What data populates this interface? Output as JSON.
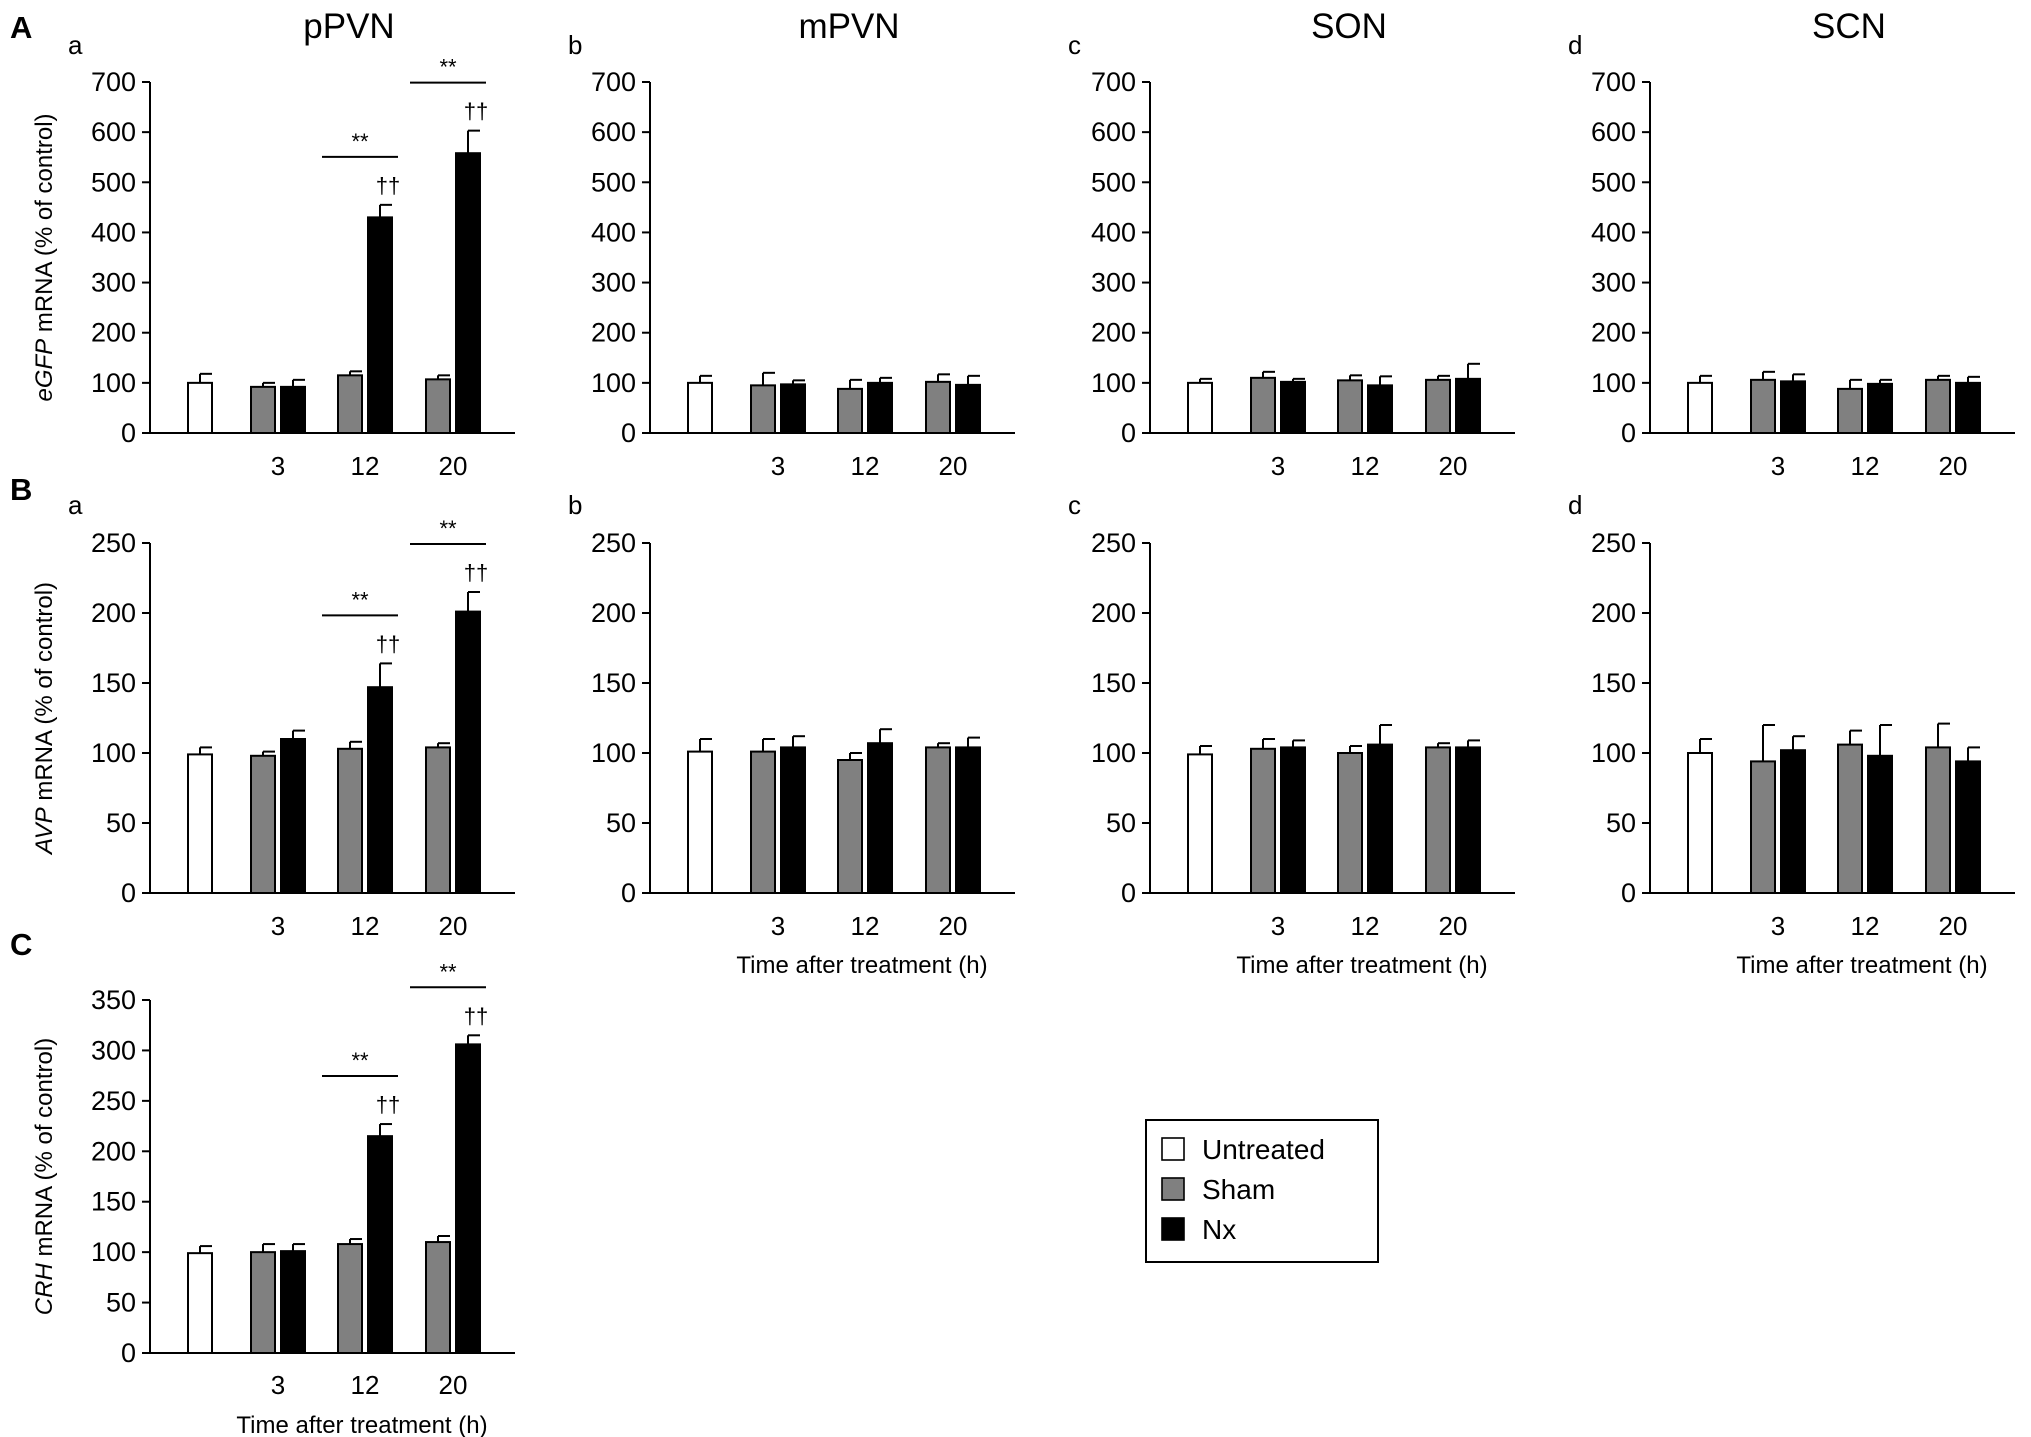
{
  "legend": {
    "entries": [
      {
        "name": "Untreated",
        "color": "#ffffff"
      },
      {
        "name": "Sham",
        "color": "#808080"
      },
      {
        "name": "Nx",
        "color": "#000000"
      }
    ]
  },
  "chart_data": [
    {
      "id": "A-a",
      "type": "bar",
      "panel": "A",
      "sub": "a",
      "title": "pPVN",
      "ylabel_italic": "eGFP",
      "ylabel_rest": " mRNA (% of control)",
      "xlabel": "",
      "ylim": [
        0,
        700
      ],
      "yticks": [
        0,
        100,
        200,
        300,
        400,
        500,
        600,
        700
      ],
      "categories": [
        "",
        "3",
        "12",
        "20"
      ],
      "series": [
        {
          "name": "Untreated",
          "values": [
            100,
            null,
            null,
            null
          ],
          "errors": [
            18,
            null,
            null,
            null
          ]
        },
        {
          "name": "Sham",
          "values": [
            null,
            92,
            115,
            107
          ],
          "errors": [
            null,
            8,
            8,
            8
          ]
        },
        {
          "name": "Nx",
          "values": [
            null,
            92,
            430,
            558
          ],
          "errors": [
            null,
            14,
            25,
            45
          ]
        }
      ],
      "annotations": [
        {
          "category": "12",
          "text": "**",
          "type": "bracket"
        },
        {
          "category": "12",
          "text": "††",
          "type": "dagger"
        },
        {
          "category": "20",
          "text": "**",
          "type": "bracket"
        },
        {
          "category": "20",
          "text": "††",
          "type": "dagger"
        }
      ]
    },
    {
      "id": "A-b",
      "type": "bar",
      "panel": "",
      "sub": "b",
      "title": "mPVN",
      "ylabel_italic": "",
      "ylabel_rest": "",
      "xlabel": "",
      "ylim": [
        0,
        700
      ],
      "yticks": [
        0,
        100,
        200,
        300,
        400,
        500,
        600,
        700
      ],
      "categories": [
        "",
        "3",
        "12",
        "20"
      ],
      "series": [
        {
          "name": "Untreated",
          "values": [
            100,
            null,
            null,
            null
          ],
          "errors": [
            14,
            null,
            null,
            null
          ]
        },
        {
          "name": "Sham",
          "values": [
            null,
            95,
            88,
            102
          ],
          "errors": [
            null,
            25,
            18,
            15
          ]
        },
        {
          "name": "Nx",
          "values": [
            null,
            97,
            100,
            96
          ],
          "errors": [
            null,
            8,
            10,
            18
          ]
        }
      ],
      "annotations": []
    },
    {
      "id": "A-c",
      "type": "bar",
      "panel": "",
      "sub": "c",
      "title": "SON",
      "ylabel_italic": "",
      "ylabel_rest": "",
      "xlabel": "",
      "ylim": [
        0,
        700
      ],
      "yticks": [
        0,
        100,
        200,
        300,
        400,
        500,
        600,
        700
      ],
      "categories": [
        "",
        "3",
        "12",
        "20"
      ],
      "series": [
        {
          "name": "Untreated",
          "values": [
            100,
            null,
            null,
            null
          ],
          "errors": [
            8,
            null,
            null,
            null
          ]
        },
        {
          "name": "Sham",
          "values": [
            null,
            110,
            105,
            106
          ],
          "errors": [
            null,
            12,
            10,
            8
          ]
        },
        {
          "name": "Nx",
          "values": [
            null,
            102,
            95,
            108
          ],
          "errors": [
            null,
            6,
            18,
            30
          ]
        }
      ],
      "annotations": []
    },
    {
      "id": "A-d",
      "type": "bar",
      "panel": "",
      "sub": "d",
      "title": "SCN",
      "ylabel_italic": "",
      "ylabel_rest": "",
      "xlabel": "",
      "ylim": [
        0,
        700
      ],
      "yticks": [
        0,
        100,
        200,
        300,
        400,
        500,
        600,
        700
      ],
      "categories": [
        "",
        "3",
        "12",
        "20"
      ],
      "series": [
        {
          "name": "Untreated",
          "values": [
            100,
            null,
            null,
            null
          ],
          "errors": [
            14,
            null,
            null,
            null
          ]
        },
        {
          "name": "Sham",
          "values": [
            null,
            106,
            88,
            106
          ],
          "errors": [
            null,
            16,
            18,
            8
          ]
        },
        {
          "name": "Nx",
          "values": [
            null,
            103,
            98,
            100
          ],
          "errors": [
            null,
            14,
            8,
            12
          ]
        }
      ],
      "annotations": []
    },
    {
      "id": "B-a",
      "type": "bar",
      "panel": "B",
      "sub": "a",
      "title": "",
      "ylabel_italic": "AVP",
      "ylabel_rest": " mRNA (% of control)",
      "xlabel": "",
      "ylim": [
        0,
        250
      ],
      "yticks": [
        0,
        50,
        100,
        150,
        200,
        250
      ],
      "categories": [
        "",
        "3",
        "12",
        "20"
      ],
      "series": [
        {
          "name": "Untreated",
          "values": [
            99,
            null,
            null,
            null
          ],
          "errors": [
            5,
            null,
            null,
            null
          ]
        },
        {
          "name": "Sham",
          "values": [
            null,
            98,
            103,
            104
          ],
          "errors": [
            null,
            3,
            5,
            3
          ]
        },
        {
          "name": "Nx",
          "values": [
            null,
            110,
            147,
            201
          ],
          "errors": [
            null,
            6,
            17,
            14
          ]
        }
      ],
      "annotations": [
        {
          "category": "12",
          "text": "**",
          "type": "bracket"
        },
        {
          "category": "12",
          "text": "††",
          "type": "dagger"
        },
        {
          "category": "20",
          "text": "**",
          "type": "bracket"
        },
        {
          "category": "20",
          "text": "††",
          "type": "dagger"
        }
      ]
    },
    {
      "id": "B-b",
      "type": "bar",
      "panel": "",
      "sub": "b",
      "title": "",
      "ylabel_italic": "",
      "ylabel_rest": "",
      "xlabel": "Time after treatment (h)",
      "ylim": [
        0,
        250
      ],
      "yticks": [
        0,
        50,
        100,
        150,
        200,
        250
      ],
      "categories": [
        "",
        "3",
        "12",
        "20"
      ],
      "series": [
        {
          "name": "Untreated",
          "values": [
            101,
            null,
            null,
            null
          ],
          "errors": [
            9,
            null,
            null,
            null
          ]
        },
        {
          "name": "Sham",
          "values": [
            null,
            101,
            95,
            104
          ],
          "errors": [
            null,
            9,
            5,
            3
          ]
        },
        {
          "name": "Nx",
          "values": [
            null,
            104,
            107,
            104
          ],
          "errors": [
            null,
            8,
            10,
            7
          ]
        }
      ],
      "annotations": []
    },
    {
      "id": "B-c",
      "type": "bar",
      "panel": "",
      "sub": "c",
      "title": "",
      "ylabel_italic": "",
      "ylabel_rest": "",
      "xlabel": "Time after treatment (h)",
      "ylim": [
        0,
        250
      ],
      "yticks": [
        0,
        50,
        100,
        150,
        200,
        250
      ],
      "categories": [
        "",
        "3",
        "12",
        "20"
      ],
      "series": [
        {
          "name": "Untreated",
          "values": [
            99,
            null,
            null,
            null
          ],
          "errors": [
            6,
            null,
            null,
            null
          ]
        },
        {
          "name": "Sham",
          "values": [
            null,
            103,
            100,
            104
          ],
          "errors": [
            null,
            7,
            5,
            3
          ]
        },
        {
          "name": "Nx",
          "values": [
            null,
            104,
            106,
            104
          ],
          "errors": [
            null,
            5,
            14,
            5
          ]
        }
      ],
      "annotations": []
    },
    {
      "id": "B-d",
      "type": "bar",
      "panel": "",
      "sub": "d",
      "title": "",
      "ylabel_italic": "",
      "ylabel_rest": "",
      "xlabel": "Time after treatment (h)",
      "ylim": [
        0,
        250
      ],
      "yticks": [
        0,
        50,
        100,
        150,
        200,
        250
      ],
      "categories": [
        "",
        "3",
        "12",
        "20"
      ],
      "series": [
        {
          "name": "Untreated",
          "values": [
            100,
            null,
            null,
            null
          ],
          "errors": [
            10,
            null,
            null,
            null
          ]
        },
        {
          "name": "Sham",
          "values": [
            null,
            94,
            106,
            104
          ],
          "errors": [
            null,
            26,
            10,
            17
          ]
        },
        {
          "name": "Nx",
          "values": [
            null,
            102,
            98,
            94
          ],
          "errors": [
            null,
            10,
            22,
            10
          ]
        }
      ],
      "annotations": []
    },
    {
      "id": "C",
      "type": "bar",
      "panel": "C",
      "sub": "",
      "title": "",
      "ylabel_italic": "CRH",
      "ylabel_rest": " mRNA (% of control)",
      "xlabel": "Time after treatment (h)",
      "ylim": [
        0,
        350
      ],
      "yticks": [
        0,
        50,
        100,
        150,
        200,
        250,
        300,
        350
      ],
      "categories": [
        "",
        "3",
        "12",
        "20"
      ],
      "series": [
        {
          "name": "Untreated",
          "values": [
            99,
            null,
            null,
            null
          ],
          "errors": [
            7,
            null,
            null,
            null
          ]
        },
        {
          "name": "Sham",
          "values": [
            null,
            100,
            108,
            110
          ],
          "errors": [
            null,
            8,
            5,
            6
          ]
        },
        {
          "name": "Nx",
          "values": [
            null,
            101,
            215,
            306
          ],
          "errors": [
            null,
            7,
            12,
            9
          ]
        }
      ],
      "annotations": [
        {
          "category": "12",
          "text": "**",
          "type": "bracket"
        },
        {
          "category": "12",
          "text": "††",
          "type": "dagger"
        },
        {
          "category": "20",
          "text": "**",
          "type": "bracket"
        },
        {
          "category": "20",
          "text": "††",
          "type": "dagger"
        }
      ]
    }
  ]
}
